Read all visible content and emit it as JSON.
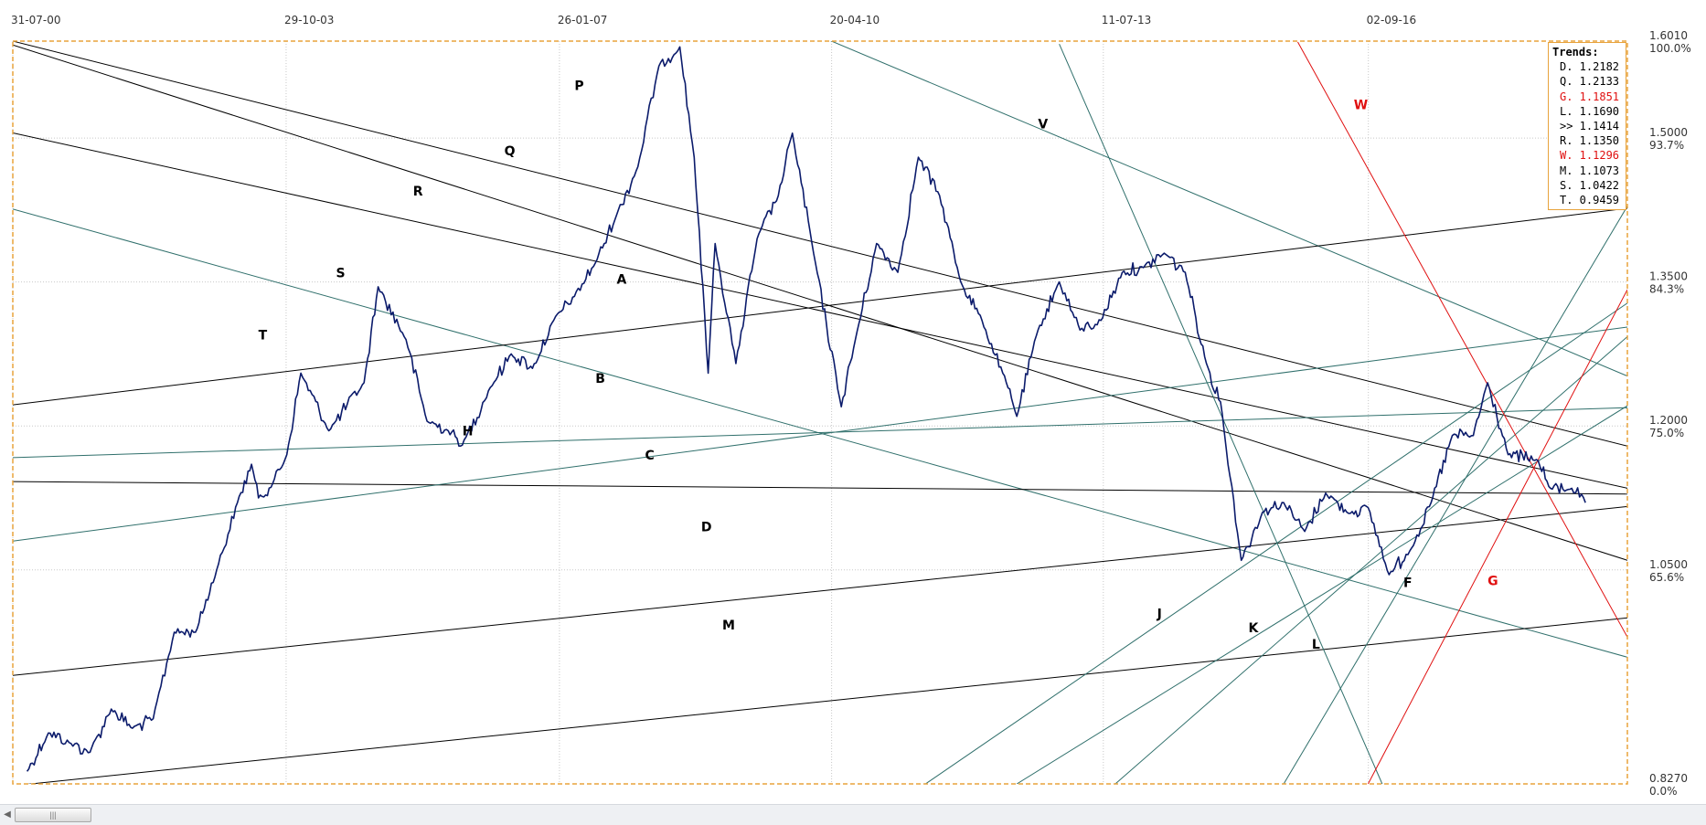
{
  "chart_data": {
    "type": "line",
    "title": "",
    "x_ticks": [
      "31-07-00",
      "29-10-03",
      "26-01-07",
      "20-04-10",
      "11-07-13",
      "02-09-16"
    ],
    "x_range": [
      "2000-07-31",
      "2019-09-30"
    ],
    "ylim": [
      0.827,
      1.601
    ],
    "y_ticks": [
      {
        "value": "1.6010",
        "pct": "100.0%"
      },
      {
        "value": "1.5000",
        "pct": "93.7%"
      },
      {
        "value": "1.3500",
        "pct": "84.3%"
      },
      {
        "value": "1.2000",
        "pct": "75.0%"
      },
      {
        "value": "1.0500",
        "pct": "65.6%"
      },
      {
        "value": "0.8270",
        "pct": "0.0%"
      }
    ],
    "grid": true,
    "price_color": "#0b1b6b",
    "price_series": [
      [
        "2000-10-01",
        0.84
      ],
      [
        "2001-01-01",
        0.88
      ],
      [
        "2001-04-01",
        0.87
      ],
      [
        "2001-07-01",
        0.86
      ],
      [
        "2001-10-01",
        0.905
      ],
      [
        "2002-01-01",
        0.885
      ],
      [
        "2002-04-01",
        0.895
      ],
      [
        "2002-07-01",
        0.985
      ],
      [
        "2002-10-01",
        0.985
      ],
      [
        "2003-01-01",
        1.05
      ],
      [
        "2003-04-01",
        1.12
      ],
      [
        "2003-06-01",
        1.16
      ],
      [
        "2003-07-01",
        1.125
      ],
      [
        "2003-09-01",
        1.14
      ],
      [
        "2003-11-01",
        1.17
      ],
      [
        "2004-01-01",
        1.255
      ],
      [
        "2004-05-01",
        1.195
      ],
      [
        "2004-10-01",
        1.245
      ],
      [
        "2004-12-01",
        1.345
      ],
      [
        "2005-04-01",
        1.29
      ],
      [
        "2005-07-01",
        1.205
      ],
      [
        "2005-10-01",
        1.195
      ],
      [
        "2005-12-01",
        1.18
      ],
      [
        "2006-04-01",
        1.24
      ],
      [
        "2006-07-01",
        1.275
      ],
      [
        "2006-10-01",
        1.26
      ],
      [
        "2007-01-01",
        1.31
      ],
      [
        "2007-04-01",
        1.335
      ],
      [
        "2007-07-01",
        1.37
      ],
      [
        "2007-10-01",
        1.42
      ],
      [
        "2008-01-01",
        1.47
      ],
      [
        "2008-04-01",
        1.575
      ],
      [
        "2008-07-01",
        1.595
      ],
      [
        "2008-09-01",
        1.48
      ],
      [
        "2008-11-01",
        1.255
      ],
      [
        "2008-12-01",
        1.39
      ],
      [
        "2009-03-01",
        1.265
      ],
      [
        "2009-06-01",
        1.395
      ],
      [
        "2009-09-01",
        1.44
      ],
      [
        "2009-11-01",
        1.505
      ],
      [
        "2010-02-01",
        1.38
      ],
      [
        "2010-06-01",
        1.22
      ],
      [
        "2010-08-01",
        1.29
      ],
      [
        "2010-11-01",
        1.39
      ],
      [
        "2011-02-01",
        1.36
      ],
      [
        "2011-05-01",
        1.48
      ],
      [
        "2011-08-01",
        1.44
      ],
      [
        "2011-11-01",
        1.35
      ],
      [
        "2012-02-01",
        1.31
      ],
      [
        "2012-05-01",
        1.255
      ],
      [
        "2012-07-01",
        1.21
      ],
      [
        "2012-10-01",
        1.3
      ],
      [
        "2013-01-01",
        1.35
      ],
      [
        "2013-04-01",
        1.3
      ],
      [
        "2013-07-01",
        1.31
      ],
      [
        "2013-10-01",
        1.36
      ],
      [
        "2014-01-01",
        1.365
      ],
      [
        "2014-04-01",
        1.38
      ],
      [
        "2014-07-01",
        1.36
      ],
      [
        "2014-10-01",
        1.265
      ],
      [
        "2014-12-01",
        1.225
      ],
      [
        "2015-03-01",
        1.06
      ],
      [
        "2015-06-01",
        1.11
      ],
      [
        "2015-09-01",
        1.12
      ],
      [
        "2015-12-01",
        1.09
      ],
      [
        "2016-03-01",
        1.13
      ],
      [
        "2016-06-01",
        1.11
      ],
      [
        "2016-09-01",
        1.115
      ],
      [
        "2016-12-01",
        1.045
      ],
      [
        "2017-03-01",
        1.07
      ],
      [
        "2017-06-01",
        1.12
      ],
      [
        "2017-09-01",
        1.19
      ],
      [
        "2017-12-01",
        1.19
      ],
      [
        "2018-02-01",
        1.245
      ],
      [
        "2018-05-01",
        1.17
      ],
      [
        "2018-09-01",
        1.165
      ],
      [
        "2018-11-01",
        1.135
      ],
      [
        "2019-02-01",
        1.135
      ],
      [
        "2019-04-01",
        1.12
      ]
    ],
    "trendlines": [
      {
        "name": "P",
        "color": "#2f6f6b",
        "label_color": "#000000",
        "x1": "2000-07-31",
        "y1": 1.96,
        "x2": "2019-09-30",
        "y2": 1.252
      },
      {
        "name": "Q",
        "color": "#000000",
        "label_color": "#000000",
        "x1": "2000-07-31",
        "y1": 1.601,
        "x2": "2019-09-30",
        "y2": 1.179
      },
      {
        "name": "R",
        "color": "#000000",
        "label_color": "#000000",
        "x1": "2000-07-31",
        "y1": 1.5053,
        "x2": "2019-09-30",
        "y2": 1.1351
      },
      {
        "name": "S",
        "color": "#000000",
        "label_color": "#000000",
        "x1": "2000-07-31",
        "y1": 1.597,
        "x2": "2019-09-30",
        "y2": 1.06
      },
      {
        "name": "T",
        "color": "#2f6f6b",
        "label_color": "#000000",
        "x1": "2000-07-31",
        "y1": 1.426,
        "x2": "2019-09-30",
        "y2": 0.959
      },
      {
        "name": "A",
        "color": "#000000",
        "label_color": "#000000",
        "x1": "2000-07-31",
        "y1": 1.222,
        "x2": "2019-09-30",
        "y2": 1.4268
      },
      {
        "name": "B",
        "color": "#000000",
        "label_color": "#000000",
        "x1": "2000-07-31",
        "y1": 1.142,
        "x2": "2019-09-30",
        "y2": 1.129
      },
      {
        "name": "H",
        "color": "#2f6f6b",
        "label_color": "#000000",
        "x1": "2000-07-31",
        "y1": 1.167,
        "x2": "2019-09-30",
        "y2": 1.219
      },
      {
        "name": "C",
        "color": "#2f6f6b",
        "label_color": "#000000",
        "x1": "2000-07-31",
        "y1": 1.08,
        "x2": "2019-09-30",
        "y2": 1.303
      },
      {
        "name": "D",
        "color": "#000000",
        "label_color": "#000000",
        "x1": "2000-07-31",
        "y1": 0.94,
        "x2": "2019-09-30",
        "y2": 1.116
      },
      {
        "name": "M",
        "color": "#000000",
        "label_color": "#000000",
        "x1": "2000-07-31",
        "y1": 0.825,
        "x2": "2019-09-30",
        "y2": 1.0
      },
      {
        "name": "V",
        "color": "#2f6f6b",
        "label_color": "#000000",
        "x1": "2013-01-01",
        "y1": 1.598,
        "x2": "2016-11-01",
        "y2": 0.827
      },
      {
        "name": "J",
        "color": "#2f6f6b",
        "label_color": "#000000",
        "x1": "2011-06-01",
        "y1": 0.827,
        "x2": "2019-09-30",
        "y2": 1.328
      },
      {
        "name": "K",
        "color": "#2f6f6b",
        "label_color": "#000000",
        "x1": "2012-07-01",
        "y1": 0.827,
        "x2": "2019-09-30",
        "y2": 1.221
      },
      {
        "name": "L",
        "color": "#2f6f6b",
        "label_color": "#000000",
        "x1": "2013-09-01",
        "y1": 0.827,
        "x2": "2019-09-30",
        "y2": 1.293
      },
      {
        "name": "F",
        "color": "#2f6f6b",
        "label_color": "#000000",
        "x1": "2015-09-01",
        "y1": 0.827,
        "x2": "2019-09-30",
        "y2": 1.429
      },
      {
        "name": "W",
        "color": "#e01010",
        "label_color": "#e01010",
        "x1": "2015-11-01",
        "y1": 1.6,
        "x2": "2019-09-30",
        "y2": 0.98
      },
      {
        "name": "G",
        "color": "#e01010",
        "label_color": "#e01010",
        "x1": "2016-09-01",
        "y1": 0.827,
        "x2": "2019-09-30",
        "y2": 1.342
      }
    ],
    "label_positions": [
      {
        "name": "P",
        "x": "2007-04-01",
        "y": 1.55
      },
      {
        "name": "Q",
        "x": "2006-06-01",
        "y": 1.482
      },
      {
        "name": "R",
        "x": "2005-05-01",
        "y": 1.44
      },
      {
        "name": "S",
        "x": "2004-06-01",
        "y": 1.355
      },
      {
        "name": "T",
        "x": "2003-07-01",
        "y": 1.29
      },
      {
        "name": "A",
        "x": "2007-10-01",
        "y": 1.348
      },
      {
        "name": "B",
        "x": "2007-07-01",
        "y": 1.245
      },
      {
        "name": "H",
        "x": "2005-12-01",
        "y": 1.19
      },
      {
        "name": "C",
        "x": "2008-02-01",
        "y": 1.165
      },
      {
        "name": "D",
        "x": "2008-10-01",
        "y": 1.09
      },
      {
        "name": "M",
        "x": "2009-01-01",
        "y": 0.988
      },
      {
        "name": "V",
        "x": "2012-10-01",
        "y": 1.51
      },
      {
        "name": "J",
        "x": "2014-03-01",
        "y": 1.0
      },
      {
        "name": "K",
        "x": "2015-04-01",
        "y": 0.985
      },
      {
        "name": "L",
        "x": "2016-01-01",
        "y": 0.968
      },
      {
        "name": "F",
        "x": "2017-02-01",
        "y": 1.032
      },
      {
        "name": "W",
        "x": "2016-07-01",
        "y": 1.53
      },
      {
        "name": "G",
        "x": "2018-02-01",
        "y": 1.034
      }
    ]
  },
  "legend": {
    "title": "Trends:",
    "items": [
      {
        "text": "D. 1.2182",
        "color": "#000000"
      },
      {
        "text": "Q. 1.2133",
        "color": "#000000"
      },
      {
        "text": "G. 1.1851",
        "color": "#e01010"
      },
      {
        "text": "L. 1.1690",
        "color": "#000000"
      },
      {
        "text": ">> 1.1414",
        "color": "#000000"
      },
      {
        "text": "R. 1.1350",
        "color": "#000000"
      },
      {
        "text": "W. 1.1296",
        "color": "#e01010"
      },
      {
        "text": "M. 1.1073",
        "color": "#000000"
      },
      {
        "text": "S. 1.0422",
        "color": "#000000"
      },
      {
        "text": "T. 0.9459",
        "color": "#000000"
      }
    ]
  },
  "scrollbar": {
    "left_arrow": "◀",
    "thumb_grip": "|||"
  },
  "colors": {
    "border": "#e8a33c",
    "grid": "#c8c8c8"
  }
}
